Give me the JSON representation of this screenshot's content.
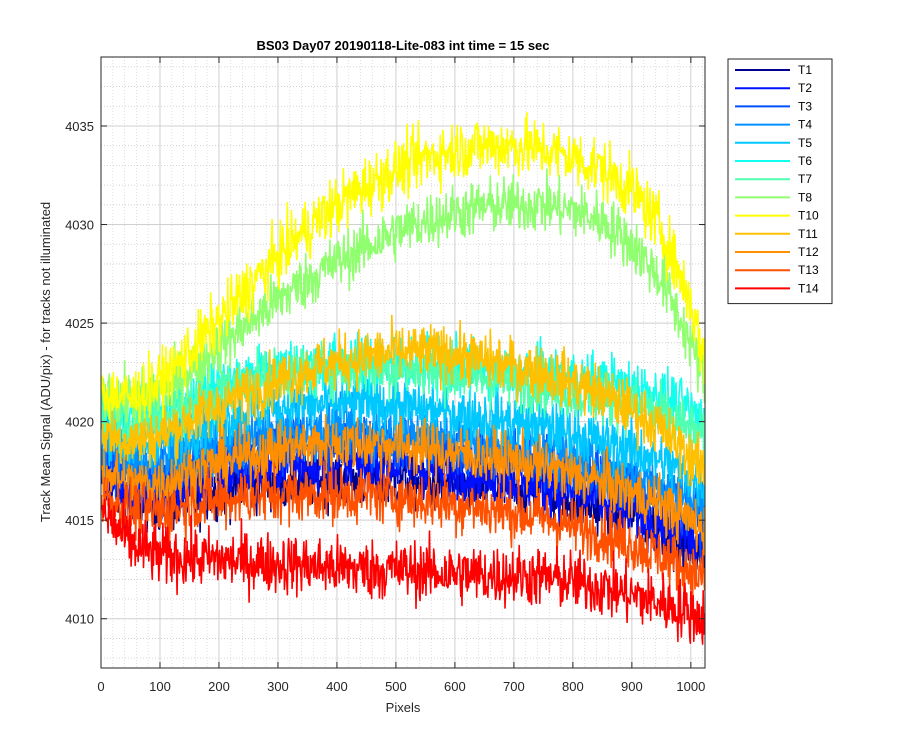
{
  "chart_data": {
    "type": "line",
    "title": "BS03 Day07 20190118-Lite-083 int time = 15 sec",
    "xlabel": "Pixels",
    "ylabel": "Track Mean Signal (ADU/pix) - for tracks not illuminated",
    "xlim": [
      0,
      1024
    ],
    "ylim": [
      4007.5,
      4038.5
    ],
    "xticks": [
      0,
      100,
      200,
      300,
      400,
      500,
      600,
      700,
      800,
      900,
      1000
    ],
    "yticks": [
      4010,
      4015,
      4020,
      4025,
      4030,
      4035
    ],
    "grid": "major and minor (dotted)",
    "legend_position": "outside top-right",
    "x_points": [
      0,
      50,
      100,
      150,
      200,
      250,
      300,
      350,
      400,
      450,
      500,
      550,
      600,
      650,
      700,
      750,
      800,
      850,
      900,
      950,
      1000,
      1024
    ],
    "noise_note_free": true,
    "series": [
      {
        "name": "T1",
        "color": "#00008f",
        "noise": 1.3,
        "values": [
          4017.0,
          4016.0,
          4015.8,
          4016.0,
          4016.5,
          4016.8,
          4017.0,
          4017.0,
          4017.0,
          4017.0,
          4017.0,
          4016.8,
          4016.8,
          4016.6,
          4016.6,
          4016.4,
          4016.0,
          4015.6,
          4015.2,
          4014.5,
          4013.5,
          4013.0
        ]
      },
      {
        "name": "T2",
        "color": "#0010ff",
        "noise": 1.3,
        "values": [
          4017.5,
          4016.5,
          4016.3,
          4016.8,
          4017.2,
          4017.6,
          4017.8,
          4017.9,
          4017.9,
          4017.9,
          4017.8,
          4017.6,
          4017.5,
          4017.3,
          4017.1,
          4016.8,
          4016.4,
          4016.0,
          4015.5,
          4014.8,
          4014.0,
          4013.5
        ]
      },
      {
        "name": "T3",
        "color": "#0050ff",
        "noise": 1.3,
        "values": [
          4018.5,
          4017.5,
          4017.3,
          4017.8,
          4018.3,
          4018.7,
          4019.0,
          4019.0,
          4019.0,
          4019.0,
          4018.9,
          4018.8,
          4018.6,
          4018.4,
          4018.2,
          4018.0,
          4017.6,
          4017.2,
          4016.8,
          4016.2,
          4015.5,
          4015.0
        ]
      },
      {
        "name": "T4",
        "color": "#0090ff",
        "noise": 1.3,
        "values": [
          4019.0,
          4018.0,
          4017.9,
          4018.4,
          4018.9,
          4019.2,
          4019.5,
          4019.6,
          4019.6,
          4019.6,
          4019.5,
          4019.3,
          4019.1,
          4018.9,
          4018.7,
          4018.5,
          4018.1,
          4017.7,
          4017.3,
          4016.8,
          4016.0,
          4015.5
        ]
      },
      {
        "name": "T5",
        "color": "#00c8ff",
        "noise": 1.3,
        "values": [
          4020.0,
          4019.0,
          4019.0,
          4019.6,
          4020.1,
          4020.5,
          4020.8,
          4020.9,
          4020.9,
          4020.9,
          4020.8,
          4020.6,
          4020.4,
          4020.2,
          4020.0,
          4019.8,
          4019.4,
          4019.0,
          4018.6,
          4018.0,
          4017.2,
          4016.8
        ]
      },
      {
        "name": "T6",
        "color": "#10ffef",
        "noise": 1.3,
        "values": [
          4021.0,
          4020.3,
          4020.5,
          4021.2,
          4021.8,
          4022.3,
          4022.7,
          4022.9,
          4023.0,
          4023.0,
          4023.0,
          4022.9,
          4022.8,
          4022.6,
          4022.5,
          4022.4,
          4022.2,
          4022.0,
          4021.8,
          4021.3,
          4020.5,
          4020.0
        ]
      },
      {
        "name": "T7",
        "color": "#50ffaf",
        "noise": 1.3,
        "values": [
          4020.5,
          4020.0,
          4020.2,
          4020.9,
          4021.5,
          4022.0,
          4022.4,
          4022.6,
          4022.7,
          4022.7,
          4022.7,
          4022.6,
          4022.4,
          4022.2,
          4022.0,
          4021.8,
          4021.5,
          4021.2,
          4020.9,
          4020.4,
          4019.5,
          4019.0
        ]
      },
      {
        "name": "T8",
        "color": "#90ff6f",
        "noise": 1.3,
        "values": [
          4021.5,
          4021.0,
          4021.5,
          4022.6,
          4023.8,
          4025.0,
          4026.2,
          4027.2,
          4028.1,
          4028.9,
          4029.6,
          4030.2,
          4030.6,
          4030.9,
          4031.0,
          4031.0,
          4030.7,
          4030.2,
          4029.0,
          4027.2,
          4024.0,
          4022.0
        ]
      },
      {
        "name": "T10",
        "color": "#ffff00",
        "noise": 1.4,
        "values": [
          4021.5,
          4021.2,
          4022.0,
          4023.5,
          4025.1,
          4026.8,
          4028.4,
          4029.8,
          4031.0,
          4032.0,
          4032.8,
          4033.4,
          4033.8,
          4034.0,
          4034.0,
          4033.8,
          4033.4,
          4032.8,
          4031.8,
          4029.8,
          4026.0,
          4023.0
        ]
      },
      {
        "name": "T11",
        "color": "#ffc000",
        "noise": 1.3,
        "values": [
          4019.5,
          4019.0,
          4019.3,
          4020.1,
          4020.8,
          4021.5,
          4022.1,
          4022.6,
          4023.0,
          4023.3,
          4023.5,
          4023.5,
          4023.4,
          4023.1,
          4022.8,
          4022.5,
          4022.0,
          4021.4,
          4020.6,
          4019.6,
          4018.2,
          4017.5
        ]
      },
      {
        "name": "T12",
        "color": "#ff8f00",
        "noise": 1.3,
        "values": [
          4017.5,
          4016.8,
          4016.9,
          4017.4,
          4017.9,
          4018.3,
          4018.6,
          4018.8,
          4018.9,
          4018.9,
          4018.8,
          4018.6,
          4018.4,
          4018.2,
          4018.0,
          4017.7,
          4017.3,
          4016.9,
          4016.4,
          4015.8,
          4015.0,
          4014.5
        ]
      },
      {
        "name": "T13",
        "color": "#ff5000",
        "noise": 1.3,
        "values": [
          4016.2,
          4015.5,
          4015.4,
          4015.7,
          4016.0,
          4016.2,
          4016.3,
          4016.3,
          4016.3,
          4016.3,
          4016.2,
          4016.0,
          4015.8,
          4015.6,
          4015.4,
          4015.1,
          4014.7,
          4014.3,
          4013.8,
          4013.2,
          4012.4,
          4012.0
        ]
      },
      {
        "name": "T14",
        "color": "#ff0000",
        "noise": 1.4,
        "values": [
          4015.5,
          4013.8,
          4013.2,
          4013.1,
          4013.0,
          4012.9,
          4012.8,
          4012.7,
          4012.6,
          4012.5,
          4012.5,
          4012.4,
          4012.3,
          4012.2,
          4012.2,
          4012.1,
          4011.9,
          4011.6,
          4011.2,
          4010.8,
          4010.3,
          4010.0
        ]
      }
    ]
  }
}
